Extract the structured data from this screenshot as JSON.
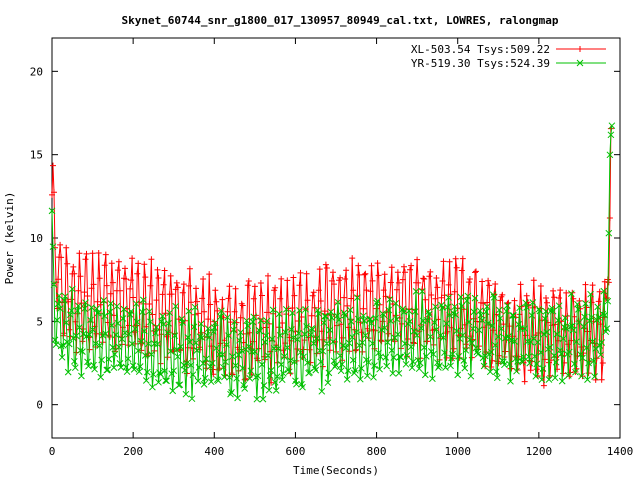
{
  "chart_data": {
    "type": "scatter",
    "title": "Skynet_60744_snr_g1800_017_130957_80949_cal.txt, LOWRES, ralongmap",
    "xlabel": "Time(Seconds)",
    "ylabel": "Power (kelvin)",
    "xlim": [
      0,
      1400
    ],
    "ylim": [
      -2,
      22
    ],
    "xticks": [
      0,
      200,
      400,
      600,
      800,
      1000,
      1200,
      1400
    ],
    "yticks": [
      0,
      5,
      10,
      15,
      20
    ],
    "legend_position": "top-right",
    "grid": false,
    "series": [
      {
        "name": "XL-503.54 Tsys:509.22",
        "color": "#ff0000",
        "marker": "plus",
        "t_end": 1378,
        "baseline": [
          [
            0,
            13
          ],
          [
            8,
            9
          ],
          [
            30,
            6.5
          ],
          [
            100,
            6.3
          ],
          [
            200,
            5.9
          ],
          [
            300,
            5.3
          ],
          [
            400,
            4.6
          ],
          [
            500,
            4.3
          ],
          [
            600,
            4.9
          ],
          [
            700,
            5.6
          ],
          [
            800,
            5.8
          ],
          [
            900,
            5.8
          ],
          [
            1000,
            5.7
          ],
          [
            1050,
            5.2
          ],
          [
            1100,
            4.7
          ],
          [
            1200,
            4.2
          ],
          [
            1300,
            4.3
          ],
          [
            1365,
            4.6
          ],
          [
            1378,
            14.8
          ]
        ],
        "amplitude": 2.5,
        "period": 16
      },
      {
        "name": "YR-519.30 Tsys:524.39",
        "color": "#00c000",
        "marker": "x",
        "t_end": 1380,
        "baseline": [
          [
            0,
            10
          ],
          [
            8,
            5.5
          ],
          [
            30,
            4.5
          ],
          [
            100,
            4.2
          ],
          [
            200,
            3.8
          ],
          [
            300,
            3.2
          ],
          [
            400,
            3.0
          ],
          [
            500,
            3.0
          ],
          [
            600,
            3.2
          ],
          [
            700,
            3.6
          ],
          [
            800,
            3.9
          ],
          [
            900,
            4.2
          ],
          [
            1000,
            4.3
          ],
          [
            1050,
            4.2
          ],
          [
            1100,
            4.0
          ],
          [
            1200,
            3.8
          ],
          [
            1300,
            4.0
          ],
          [
            1365,
            4.3
          ],
          [
            1380,
            17
          ]
        ],
        "amplitude": 2.0,
        "period": 16
      }
    ]
  }
}
